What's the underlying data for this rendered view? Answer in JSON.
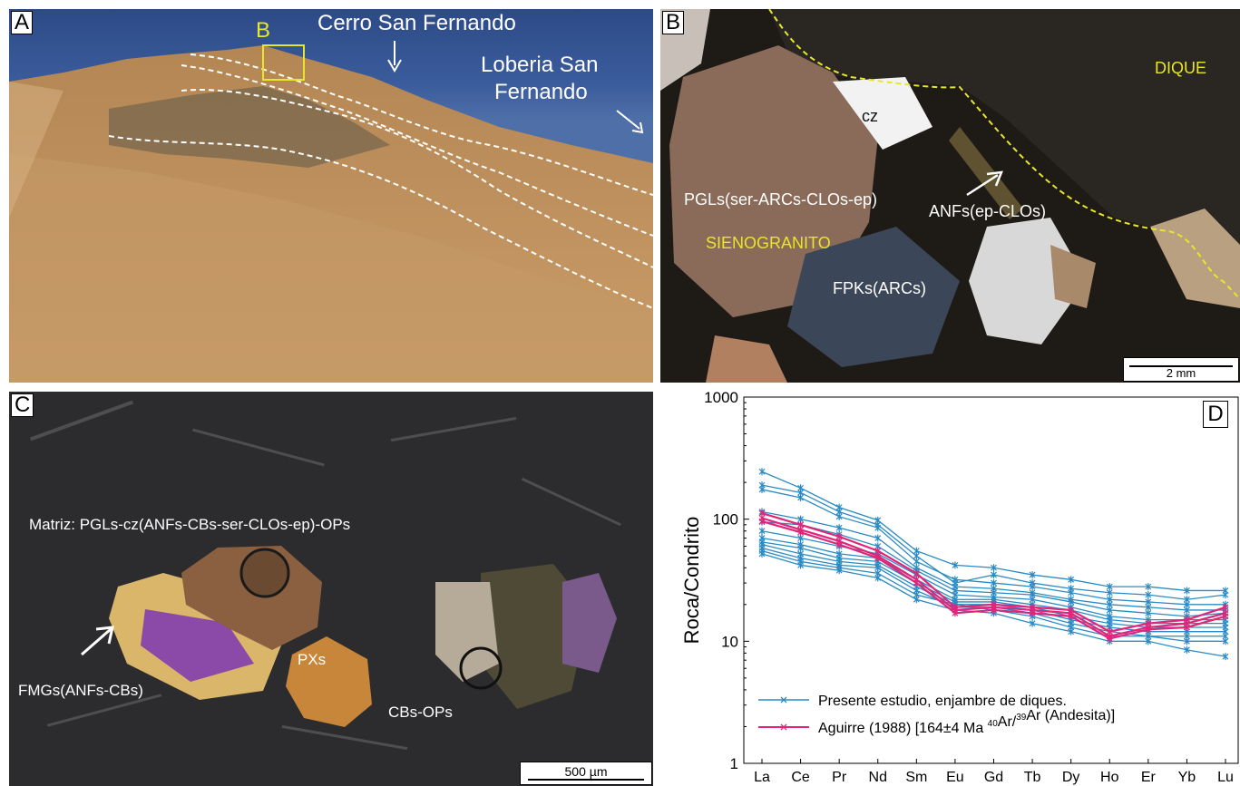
{
  "panels": {
    "a": {
      "letter": "A",
      "box_label": "B",
      "cerro": "Cerro San Fernando",
      "loberia_line1": "Loberia San",
      "loberia_line2": "Fernando"
    },
    "b": {
      "letter": "B",
      "dique": "DIQUE",
      "cz": "cz",
      "pgls": "PGLs(ser-ARCs-CLOs-ep)",
      "anfs": "ANFs(ep-CLOs)",
      "sienogranito": "SIENOGRANITO",
      "fpks": "FPKs(ARCs)",
      "scale": "2 mm"
    },
    "c": {
      "letter": "C",
      "matriz": "Matriz: PGLs-cz(ANFs-CBs-ser-CLOs-ep)-OPs",
      "fmgs": "FMGs(ANFs-CBs)",
      "pxs": "PXs",
      "cbs": "CBs-OPs",
      "scale": "500 µm"
    },
    "d": {
      "letter": "D"
    }
  },
  "colors": {
    "series_blue": "#2a8bc4",
    "series_pink": "#e0267a",
    "label_yellow": "#e6e62a"
  },
  "chart_data": {
    "type": "line",
    "ylabel": "Roca/Condrito",
    "yscale": "log",
    "ylim": [
      1,
      1000
    ],
    "yticks": [
      "1",
      "10",
      "100",
      "1000"
    ],
    "categories": [
      "La",
      "Ce",
      "Pr",
      "Nd",
      "Sm",
      "Eu",
      "Gd",
      "Tb",
      "Dy",
      "Ho",
      "Er",
      "Yb",
      "Lu"
    ],
    "legend_position": "bottom-left",
    "legend": {
      "blue": "Presente estudio, enjambre de diques.",
      "pink_prefix": "Aguirre (1988) [164±4 Ma ",
      "pink_sup1": "40",
      "pink_mid": "Ar/",
      "pink_sup2": "39",
      "pink_suffix": "Ar (Andesita)]"
    },
    "series": [
      {
        "group": "blue",
        "values": [
          245,
          180,
          125,
          98,
          55,
          42,
          40,
          35,
          32,
          28,
          28,
          26,
          26
        ]
      },
      {
        "group": "blue",
        "values": [
          190,
          165,
          115,
          90,
          50,
          30,
          35,
          30,
          27,
          25,
          24,
          22,
          24
        ]
      },
      {
        "group": "blue",
        "values": [
          175,
          150,
          105,
          85,
          45,
          32,
          30,
          28,
          25,
          22,
          21,
          20,
          20
        ]
      },
      {
        "group": "blue",
        "values": [
          115,
          100,
          85,
          70,
          40,
          28,
          27,
          25,
          22,
          20,
          19,
          18,
          18
        ]
      },
      {
        "group": "blue",
        "values": [
          95,
          90,
          75,
          60,
          38,
          26,
          25,
          24,
          21,
          18,
          17,
          16,
          17
        ]
      },
      {
        "group": "blue",
        "values": [
          80,
          70,
          60,
          52,
          35,
          24,
          23,
          22,
          19,
          16,
          15,
          15,
          15
        ]
      },
      {
        "group": "blue",
        "values": [
          70,
          62,
          52,
          48,
          32,
          22,
          22,
          20,
          18,
          15,
          14,
          14,
          14
        ]
      },
      {
        "group": "blue",
        "values": [
          65,
          58,
          48,
          45,
          30,
          21,
          21,
          19,
          16,
          14,
          13,
          13,
          13
        ]
      },
      {
        "group": "blue",
        "values": [
          62,
          52,
          45,
          42,
          28,
          20,
          20,
          18,
          15,
          13,
          12,
          12,
          12
        ]
      },
      {
        "group": "blue",
        "values": [
          58,
          48,
          42,
          40,
          26,
          19,
          19,
          17,
          14,
          12,
          11,
          11,
          11
        ]
      },
      {
        "group": "blue",
        "values": [
          55,
          45,
          40,
          36,
          24,
          20,
          18,
          16,
          13,
          11,
          11,
          10,
          10
        ]
      },
      {
        "group": "blue",
        "values": [
          52,
          42,
          38,
          33,
          22,
          18,
          17,
          14,
          12,
          10,
          10,
          8.5,
          7.5
        ]
      },
      {
        "group": "pink",
        "values": [
          112,
          90,
          72,
          55,
          36,
          19,
          20,
          19,
          18,
          12,
          14,
          15,
          19
        ]
      },
      {
        "group": "pink",
        "values": [
          102,
          82,
          66,
          50,
          32,
          18,
          19,
          18,
          17,
          11,
          13,
          14,
          17
        ]
      },
      {
        "group": "pink",
        "values": [
          96,
          78,
          62,
          48,
          30,
          17,
          18,
          17,
          16,
          10.5,
          12.5,
          13,
          16
        ]
      }
    ]
  }
}
